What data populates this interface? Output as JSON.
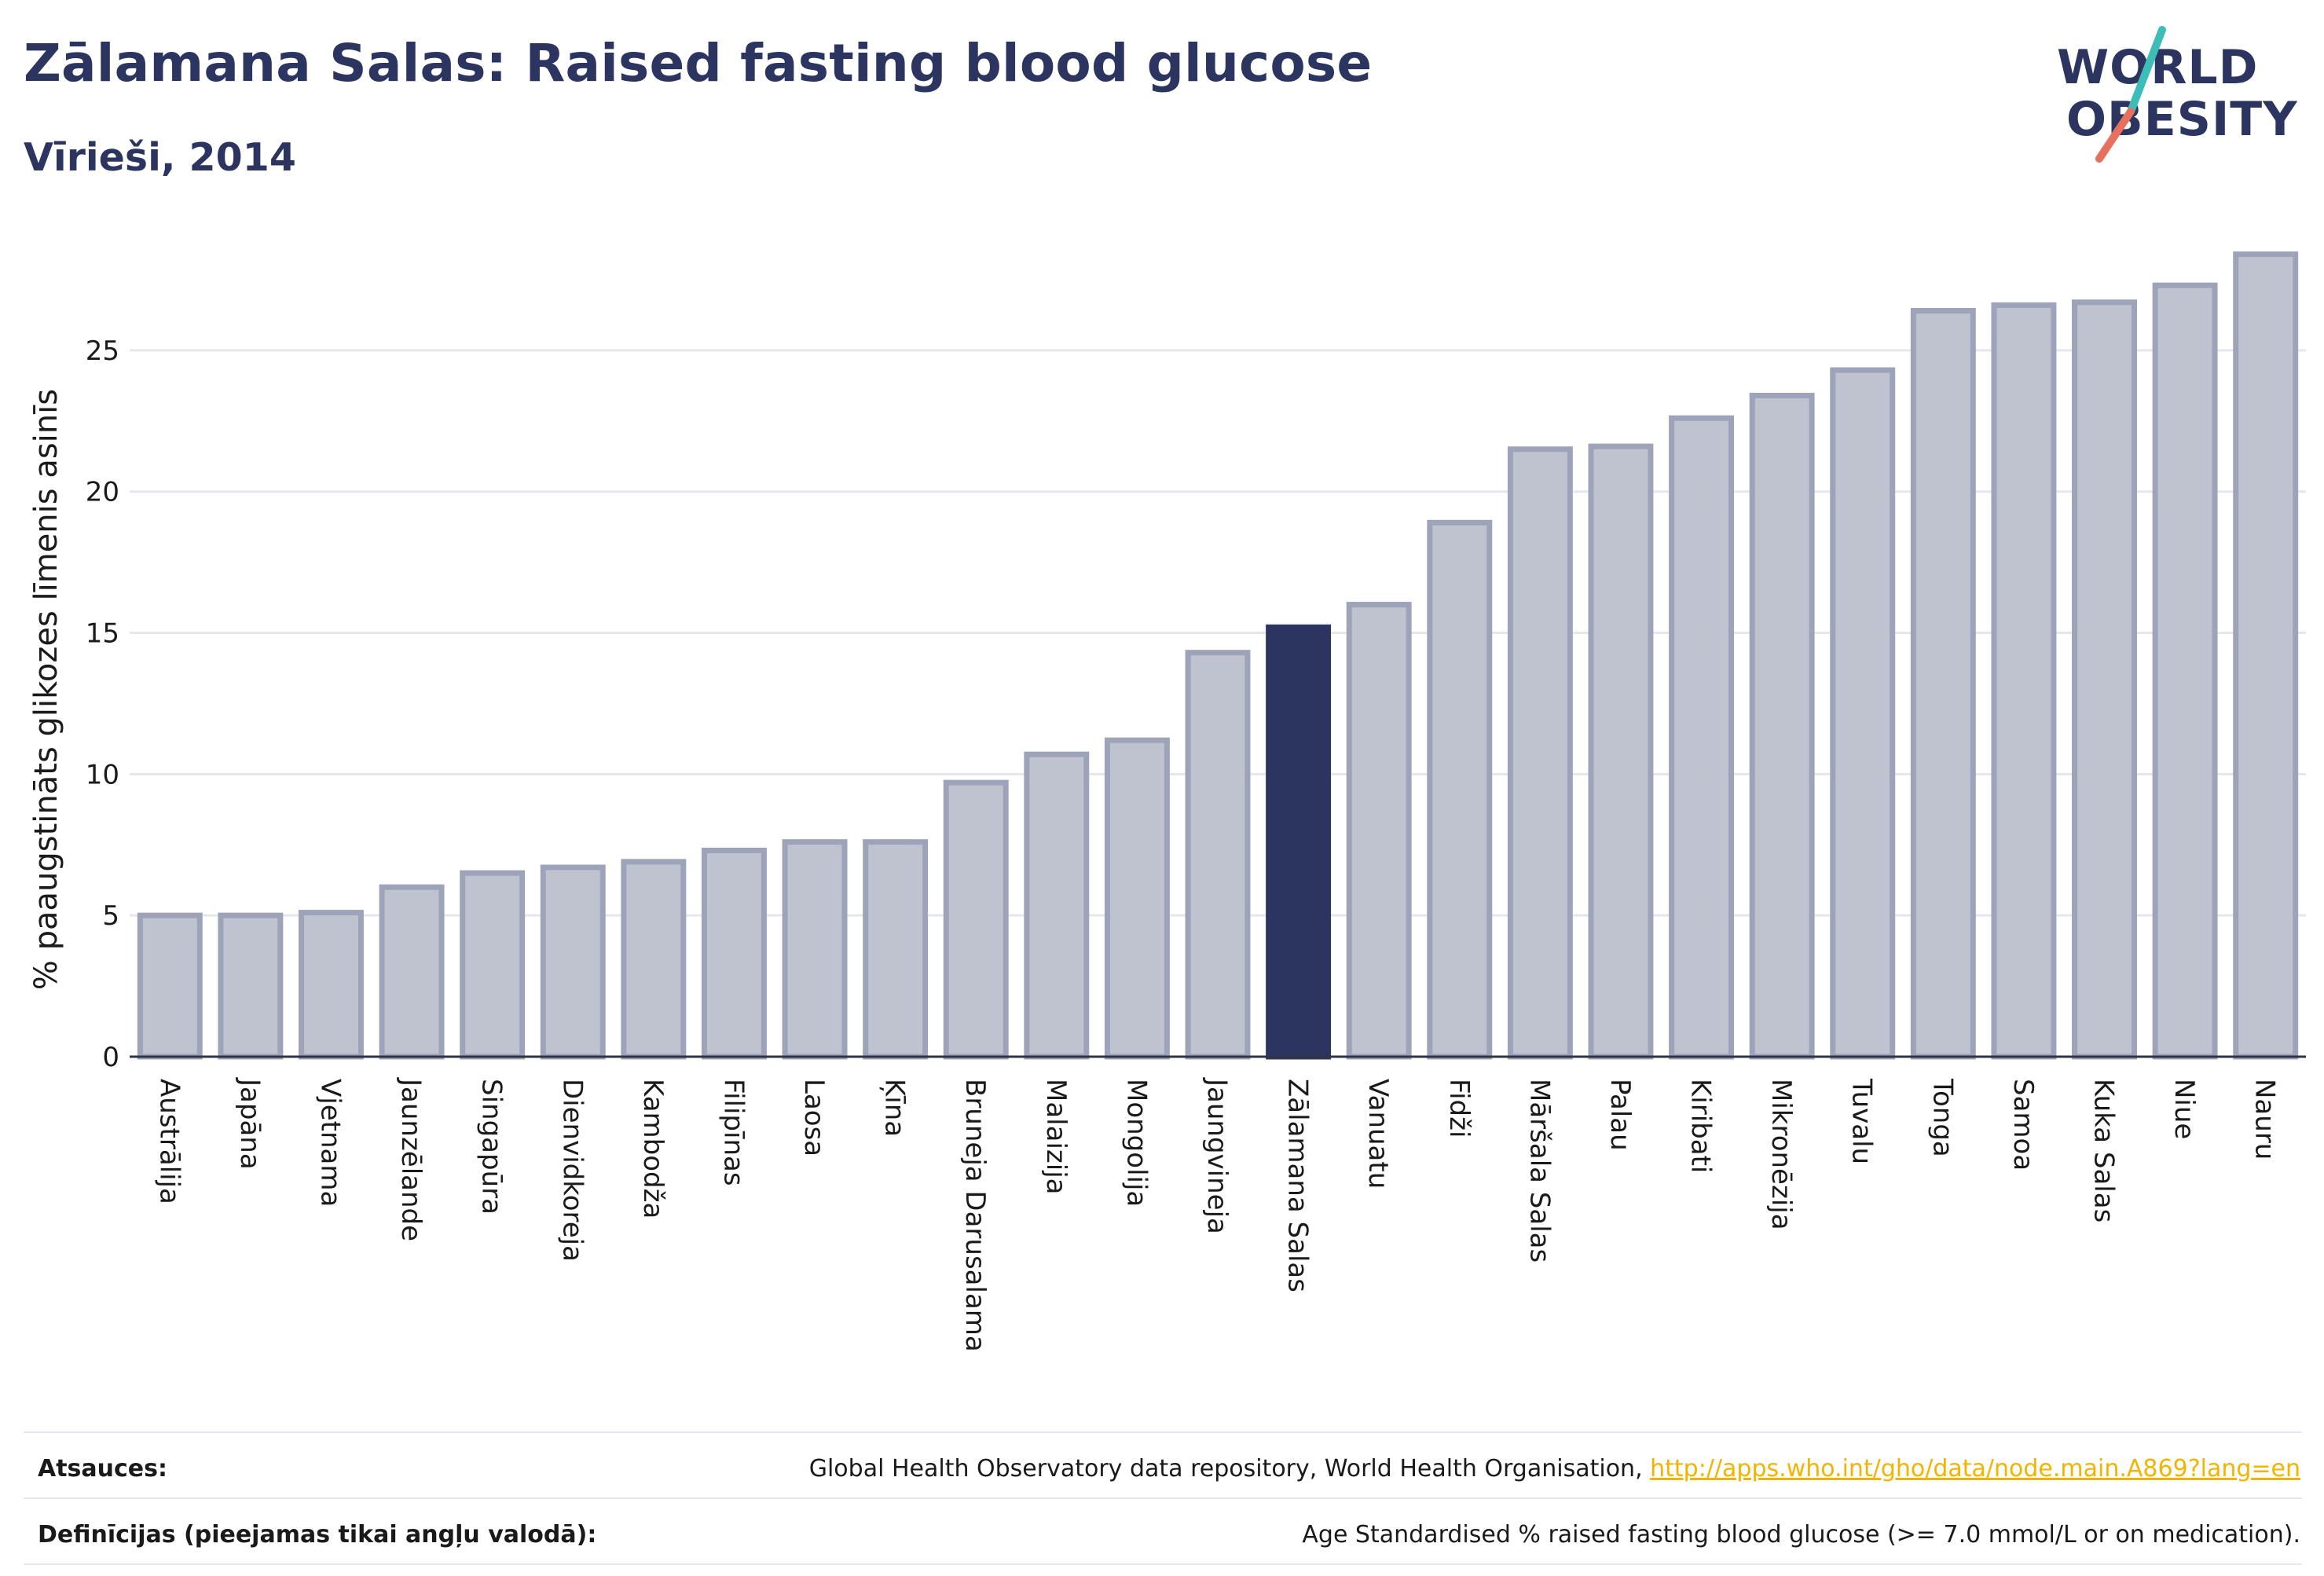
{
  "header": {
    "title": "Zālamana Salas: Raised fasting blood glucose",
    "subtitle": "Vīrieši, 2014"
  },
  "logo": {
    "line1": "WORLD",
    "line2": "OBESITY",
    "colors": {
      "text": "#2b3560",
      "slash_top": "#3dbdb8",
      "slash_bottom": "#e8705f"
    }
  },
  "colors": {
    "bar_fill": "#bfc2cf",
    "bar_stroke": "#9da3b8",
    "highlight": "#2b3560",
    "grid": "#e6e7ec",
    "axis_text": "#1a1a1a"
  },
  "chart_data": {
    "type": "bar",
    "ylabel": "% paaugstināts glikozes līmenis asinīs",
    "ylim": [
      0,
      28.5
    ],
    "yticks": [
      0,
      5,
      10,
      15,
      20,
      25
    ],
    "grid": true,
    "highlight_category": "Zālamana Salas",
    "categories": [
      "Austrālija",
      "Japāna",
      "Vjetnama",
      "Jaunzēlande",
      "Singapūra",
      "Dienvidkoreja",
      "Kambodža",
      "Filipīnas",
      "Laosa",
      "Ķīna",
      "Bruneja Darusalama",
      "Malaizija",
      "Mongolija",
      "Jaungvineja",
      "Zālamana Salas",
      "Vanuatu",
      "Fidži",
      "Māršala Salas",
      "Palau",
      "Kiribati",
      "Mikronēzija",
      "Tuvalu",
      "Tonga",
      "Samoa",
      "Kuka Salas",
      "Niue",
      "Nauru"
    ],
    "values": [
      5.0,
      5.0,
      5.1,
      6.0,
      6.5,
      6.7,
      6.9,
      7.3,
      7.6,
      7.6,
      9.7,
      10.7,
      11.2,
      14.3,
      15.2,
      16.0,
      18.9,
      21.5,
      21.6,
      22.6,
      23.4,
      24.3,
      26.4,
      26.6,
      26.7,
      27.3,
      28.4
    ]
  },
  "footer": {
    "sources_label": "Atsauces:",
    "sources_text": "Global Health Observatory data repository, World Health Organisation, ",
    "sources_link": "http://apps.who.int/gho/data/node.main.A869?lang=en",
    "definitions_label": "Definīcijas (pieejamas tikai angļu valodā):",
    "definitions_text": "Age Standardised % raised fasting blood glucose (>= 7.0 mmol/L or on medication)."
  }
}
